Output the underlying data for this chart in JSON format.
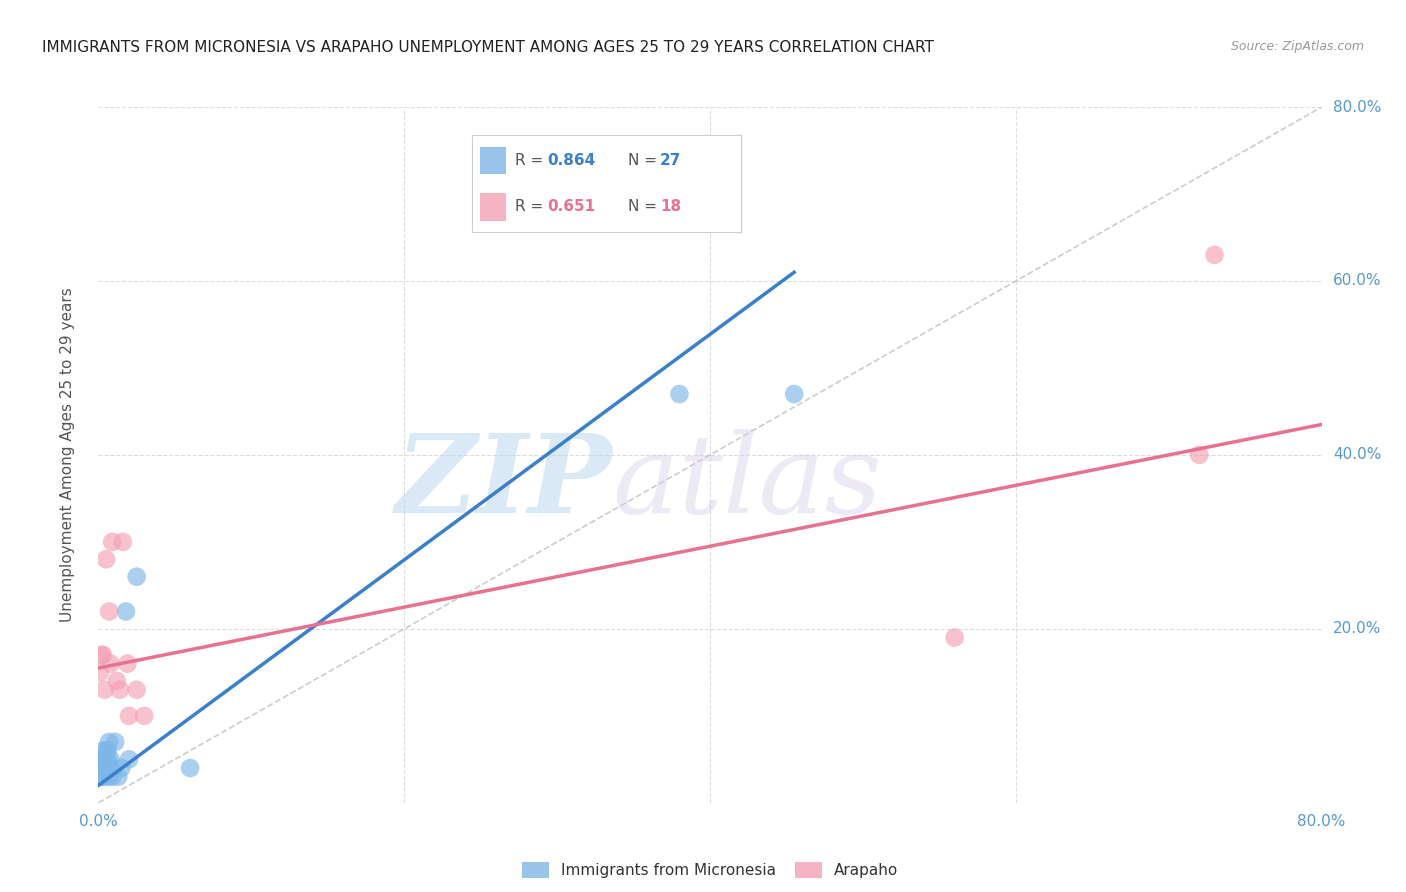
{
  "title": "IMMIGRANTS FROM MICRONESIA VS ARAPAHO UNEMPLOYMENT AMONG AGES 25 TO 29 YEARS CORRELATION CHART",
  "source": "Source: ZipAtlas.com",
  "ylabel_label": "Unemployment Among Ages 25 to 29 years",
  "xlim": [
    0,
    0.8
  ],
  "ylim": [
    0,
    0.8
  ],
  "legend_label_blue": "Immigrants from Micronesia",
  "legend_label_pink": "Arapaho",
  "blue_color": "#7EB6E8",
  "pink_color": "#F4A0B5",
  "blue_line_color": "#3A7FCC",
  "pink_line_color": "#E87090",
  "dashed_line_color": "#C0C0C0",
  "watermark_zip": "ZIP",
  "watermark_atlas": "atlas",
  "blue_scatter_x": [
    0.001,
    0.002,
    0.002,
    0.003,
    0.003,
    0.003,
    0.004,
    0.004,
    0.005,
    0.005,
    0.006,
    0.006,
    0.007,
    0.007,
    0.008,
    0.008,
    0.009,
    0.01,
    0.011,
    0.013,
    0.015,
    0.018,
    0.02,
    0.025,
    0.06,
    0.38,
    0.455
  ],
  "blue_scatter_y": [
    0.03,
    0.04,
    0.03,
    0.05,
    0.06,
    0.04,
    0.05,
    0.03,
    0.06,
    0.04,
    0.05,
    0.06,
    0.07,
    0.03,
    0.05,
    0.04,
    0.03,
    0.04,
    0.07,
    0.03,
    0.04,
    0.22,
    0.05,
    0.26,
    0.04,
    0.47,
    0.47
  ],
  "pink_scatter_x": [
    0.001,
    0.002,
    0.003,
    0.004,
    0.005,
    0.007,
    0.008,
    0.009,
    0.012,
    0.014,
    0.016,
    0.019,
    0.02,
    0.025,
    0.03,
    0.56,
    0.72,
    0.73
  ],
  "pink_scatter_y": [
    0.15,
    0.17,
    0.17,
    0.13,
    0.28,
    0.22,
    0.16,
    0.3,
    0.14,
    0.13,
    0.3,
    0.16,
    0.1,
    0.13,
    0.1,
    0.19,
    0.4,
    0.63
  ],
  "blue_line_x": [
    0.0,
    0.455
  ],
  "blue_line_y": [
    0.02,
    0.61
  ],
  "pink_line_x": [
    0.0,
    0.8
  ],
  "pink_line_y": [
    0.155,
    0.435
  ],
  "dashed_line_x": [
    0.0,
    0.8
  ],
  "dashed_line_y": [
    0.0,
    0.8
  ],
  "grid_color": "#DDDDDD",
  "title_fontsize": 11,
  "axis_tick_color": "#5599CC",
  "background_color": "#FFFFFF",
  "legend_r_blue": "0.864",
  "legend_n_blue": "27",
  "legend_r_pink": "0.651",
  "legend_n_pink": "18"
}
